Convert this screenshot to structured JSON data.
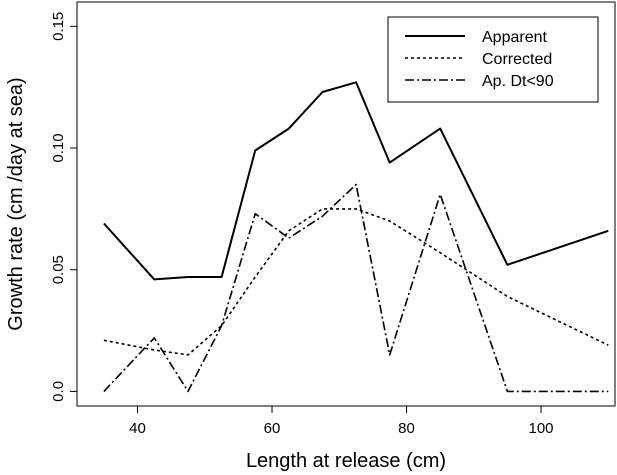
{
  "chart_data": {
    "type": "line",
    "xlabel": "Length at release (cm)",
    "ylabel": "Growth rate (cm /day at sea)",
    "xlim": [
      31,
      111
    ],
    "ylim": [
      -0.006,
      0.16
    ],
    "x_ticks": [
      40,
      60,
      80,
      100
    ],
    "y_ticks": [
      0.0,
      0.05,
      0.1,
      0.15
    ],
    "x_tick_labels": [
      "40",
      "60",
      "80",
      "100"
    ],
    "y_tick_labels": [
      "0.0",
      "0.05",
      "0.10",
      "0.15"
    ],
    "grid": false,
    "legend_position": "top-right",
    "series": [
      {
        "name": "Apparent",
        "line_style": "solid",
        "color": "#000000",
        "x": [
          35,
          42.5,
          47.5,
          52.5,
          57.5,
          62.5,
          67.5,
          72.5,
          77.5,
          85,
          95,
          110
        ],
        "y": [
          0.069,
          0.046,
          0.047,
          0.047,
          0.099,
          0.108,
          0.123,
          0.127,
          0.094,
          0.108,
          0.052,
          0.066
        ]
      },
      {
        "name": "Corrected",
        "line_style": "dotted",
        "color": "#000000",
        "x": [
          35,
          42.5,
          47.5,
          52.5,
          57.5,
          62.5,
          67.5,
          72.5,
          77.5,
          85,
          95,
          110
        ],
        "y": [
          0.021,
          0.017,
          0.015,
          0.027,
          0.047,
          0.066,
          0.075,
          0.075,
          0.07,
          0.057,
          0.039,
          0.019
        ]
      },
      {
        "name": "Ap. Dt<90",
        "line_style": "dashdot",
        "color": "#000000",
        "x": [
          35,
          42.5,
          47.5,
          52.5,
          57.5,
          62.5,
          67.5,
          72.5,
          77.5,
          85,
          95,
          110
        ],
        "y": [
          0.0,
          0.022,
          0.0,
          0.027,
          0.073,
          0.063,
          0.072,
          0.085,
          0.015,
          0.081,
          0.0,
          0.0
        ]
      }
    ]
  }
}
